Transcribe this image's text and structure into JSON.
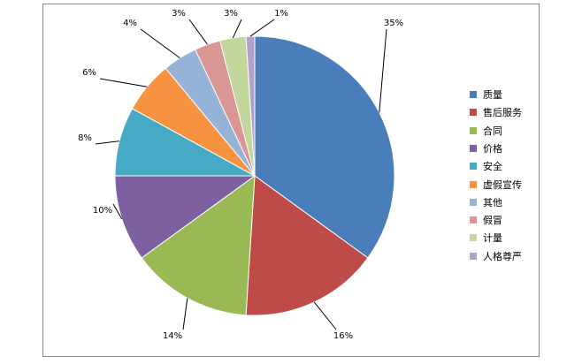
{
  "chart_data": {
    "type": "pie",
    "title": "",
    "categories": [
      "质量",
      "售后服务",
      "合同",
      "价格",
      "安全",
      "虚假宣传",
      "其他",
      "假冒",
      "计量",
      "人格尊严"
    ],
    "values": [
      35,
      16,
      14,
      10,
      8,
      6,
      4,
      3,
      3,
      1
    ],
    "data_labels": [
      "35%",
      "16%",
      "14%",
      "10%",
      "8%",
      "6%",
      "4%",
      "3%",
      "3%",
      "1%"
    ],
    "colors": [
      "#4A7EBB",
      "#BE4B48",
      "#98B954",
      "#7D60A0",
      "#46AAC5",
      "#F69240",
      "#95B3D7",
      "#D99694",
      "#C3D69B",
      "#B3A2C7"
    ],
    "legend_position": "right"
  }
}
